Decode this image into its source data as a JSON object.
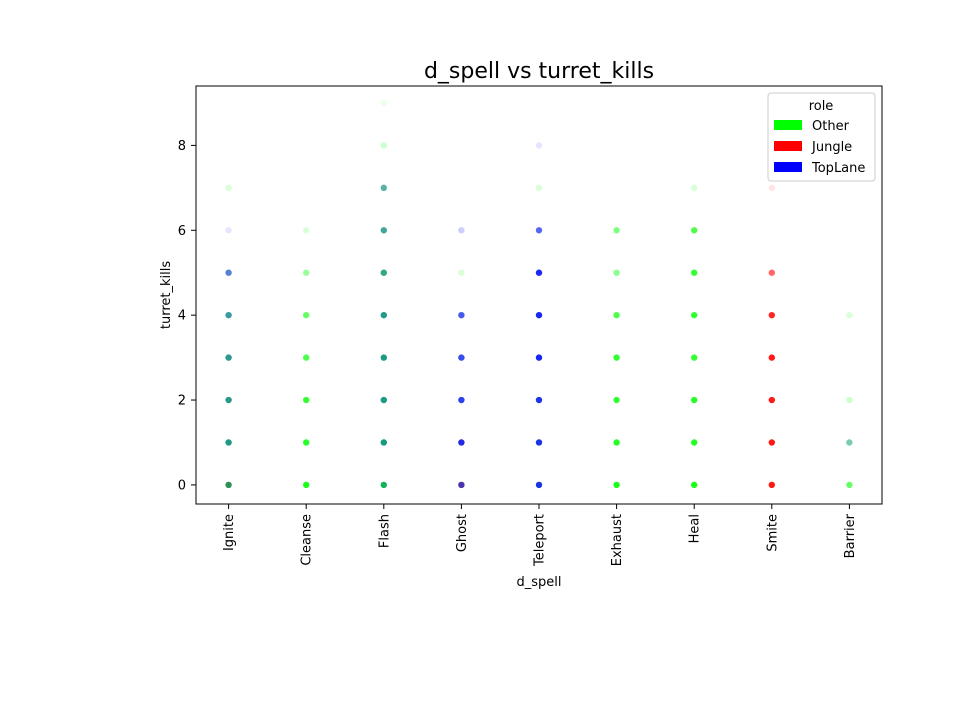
{
  "chart_data": {
    "type": "scatter",
    "title": "d_spell vs turret_kills",
    "xlabel": "d_spell",
    "ylabel": "turret_kills",
    "categories": [
      "Ignite",
      "Cleanse",
      "Flash",
      "Ghost",
      "Teleport",
      "Exhaust",
      "Heal",
      "Smite",
      "Barrier"
    ],
    "ylim": [
      -0.45,
      9.4
    ],
    "yticks": [
      0,
      2,
      4,
      6,
      8
    ],
    "grid": false,
    "legend": {
      "title": "role",
      "placement": "top-right",
      "entries": [
        {
          "label": "Other",
          "color": "#00ff00"
        },
        {
          "label": "Jungle",
          "color": "#ff0000"
        },
        {
          "label": "TopLane",
          "color": "#0000ff"
        }
      ]
    },
    "series": [
      {
        "name": "Other",
        "color": "#00ff00",
        "points": [
          {
            "x": "Ignite",
            "y": 0,
            "opacity": 0.9
          },
          {
            "x": "Ignite",
            "y": 1,
            "opacity": 0.8
          },
          {
            "x": "Ignite",
            "y": 2,
            "opacity": 0.75
          },
          {
            "x": "Ignite",
            "y": 3,
            "opacity": 0.7
          },
          {
            "x": "Ignite",
            "y": 4,
            "opacity": 0.6
          },
          {
            "x": "Ignite",
            "y": 5,
            "opacity": 0.3
          },
          {
            "x": "Ignite",
            "y": 7,
            "opacity": 0.15
          },
          {
            "x": "Cleanse",
            "y": 0,
            "opacity": 0.9
          },
          {
            "x": "Cleanse",
            "y": 1,
            "opacity": 0.85
          },
          {
            "x": "Cleanse",
            "y": 2,
            "opacity": 0.8
          },
          {
            "x": "Cleanse",
            "y": 3,
            "opacity": 0.7
          },
          {
            "x": "Cleanse",
            "y": 4,
            "opacity": 0.6
          },
          {
            "x": "Cleanse",
            "y": 5,
            "opacity": 0.4
          },
          {
            "x": "Cleanse",
            "y": 6,
            "opacity": 0.15
          },
          {
            "x": "Flash",
            "y": 0,
            "opacity": 0.9
          },
          {
            "x": "Flash",
            "y": 1,
            "opacity": 0.85
          },
          {
            "x": "Flash",
            "y": 2,
            "opacity": 0.8
          },
          {
            "x": "Flash",
            "y": 3,
            "opacity": 0.8
          },
          {
            "x": "Flash",
            "y": 4,
            "opacity": 0.75
          },
          {
            "x": "Flash",
            "y": 5,
            "opacity": 0.7
          },
          {
            "x": "Flash",
            "y": 6,
            "opacity": 0.6
          },
          {
            "x": "Flash",
            "y": 7,
            "opacity": 0.5
          },
          {
            "x": "Flash",
            "y": 8,
            "opacity": 0.2
          },
          {
            "x": "Flash",
            "y": 9,
            "opacity": 0.08
          },
          {
            "x": "Ghost",
            "y": 0,
            "opacity": 0.5
          },
          {
            "x": "Ghost",
            "y": 1,
            "opacity": 0.4
          },
          {
            "x": "Ghost",
            "y": 2,
            "opacity": 0.3
          },
          {
            "x": "Ghost",
            "y": 3,
            "opacity": 0.25
          },
          {
            "x": "Ghost",
            "y": 4,
            "opacity": 0.2
          },
          {
            "x": "Ghost",
            "y": 5,
            "opacity": 0.15
          },
          {
            "x": "Teleport",
            "y": 0,
            "opacity": 0.5
          },
          {
            "x": "Teleport",
            "y": 1,
            "opacity": 0.45
          },
          {
            "x": "Teleport",
            "y": 2,
            "opacity": 0.4
          },
          {
            "x": "Teleport",
            "y": 3,
            "opacity": 0.35
          },
          {
            "x": "Teleport",
            "y": 4,
            "opacity": 0.3
          },
          {
            "x": "Teleport",
            "y": 5,
            "opacity": 0.2
          },
          {
            "x": "Teleport",
            "y": 6,
            "opacity": 0.15
          },
          {
            "x": "Teleport",
            "y": 7,
            "opacity": 0.15
          },
          {
            "x": "Exhaust",
            "y": 0,
            "opacity": 0.9
          },
          {
            "x": "Exhaust",
            "y": 1,
            "opacity": 0.85
          },
          {
            "x": "Exhaust",
            "y": 2,
            "opacity": 0.8
          },
          {
            "x": "Exhaust",
            "y": 3,
            "opacity": 0.8
          },
          {
            "x": "Exhaust",
            "y": 4,
            "opacity": 0.7
          },
          {
            "x": "Exhaust",
            "y": 5,
            "opacity": 0.45
          },
          {
            "x": "Exhaust",
            "y": 6,
            "opacity": 0.5
          },
          {
            "x": "Heal",
            "y": 0,
            "opacity": 0.9
          },
          {
            "x": "Heal",
            "y": 1,
            "opacity": 0.85
          },
          {
            "x": "Heal",
            "y": 2,
            "opacity": 0.85
          },
          {
            "x": "Heal",
            "y": 3,
            "opacity": 0.8
          },
          {
            "x": "Heal",
            "y": 4,
            "opacity": 0.8
          },
          {
            "x": "Heal",
            "y": 5,
            "opacity": 0.8
          },
          {
            "x": "Heal",
            "y": 6,
            "opacity": 0.7
          },
          {
            "x": "Heal",
            "y": 7,
            "opacity": 0.15
          },
          {
            "x": "Smite",
            "y": 0,
            "opacity": 0.15
          },
          {
            "x": "Smite",
            "y": 1,
            "opacity": 0.1
          },
          {
            "x": "Barrier",
            "y": 0,
            "opacity": 0.6
          },
          {
            "x": "Barrier",
            "y": 1,
            "opacity": 0.4
          },
          {
            "x": "Barrier",
            "y": 2,
            "opacity": 0.2
          },
          {
            "x": "Barrier",
            "y": 4,
            "opacity": 0.15
          }
        ]
      },
      {
        "name": "Jungle",
        "color": "#ff0000",
        "points": [
          {
            "x": "Ignite",
            "y": 0,
            "opacity": 0.2
          },
          {
            "x": "Ghost",
            "y": 0,
            "opacity": 0.5
          },
          {
            "x": "Ghost",
            "y": 1,
            "opacity": 0.2
          },
          {
            "x": "Smite",
            "y": 0,
            "opacity": 0.9
          },
          {
            "x": "Smite",
            "y": 1,
            "opacity": 0.9
          },
          {
            "x": "Smite",
            "y": 2,
            "opacity": 0.9
          },
          {
            "x": "Smite",
            "y": 3,
            "opacity": 0.9
          },
          {
            "x": "Smite",
            "y": 4,
            "opacity": 0.85
          },
          {
            "x": "Smite",
            "y": 5,
            "opacity": 0.6
          },
          {
            "x": "Smite",
            "y": 7,
            "opacity": 0.1
          }
        ]
      },
      {
        "name": "TopLane",
        "color": "#0000ff",
        "points": [
          {
            "x": "Ignite",
            "y": 0,
            "opacity": 0.3
          },
          {
            "x": "Ignite",
            "y": 1,
            "opacity": 0.4
          },
          {
            "x": "Ignite",
            "y": 2,
            "opacity": 0.4
          },
          {
            "x": "Ignite",
            "y": 3,
            "opacity": 0.4
          },
          {
            "x": "Ignite",
            "y": 4,
            "opacity": 0.4
          },
          {
            "x": "Ignite",
            "y": 5,
            "opacity": 0.5
          },
          {
            "x": "Ignite",
            "y": 6,
            "opacity": 0.1
          },
          {
            "x": "Flash",
            "y": 0,
            "opacity": 0.3
          },
          {
            "x": "Flash",
            "y": 1,
            "opacity": 0.4
          },
          {
            "x": "Flash",
            "y": 2,
            "opacity": 0.4
          },
          {
            "x": "Flash",
            "y": 3,
            "opacity": 0.4
          },
          {
            "x": "Flash",
            "y": 4,
            "opacity": 0.4
          },
          {
            "x": "Flash",
            "y": 5,
            "opacity": 0.35
          },
          {
            "x": "Flash",
            "y": 6,
            "opacity": 0.35
          },
          {
            "x": "Flash",
            "y": 7,
            "opacity": 0.3
          },
          {
            "x": "Ghost",
            "y": 0,
            "opacity": 0.6
          },
          {
            "x": "Ghost",
            "y": 1,
            "opacity": 0.8
          },
          {
            "x": "Ghost",
            "y": 2,
            "opacity": 0.75
          },
          {
            "x": "Ghost",
            "y": 3,
            "opacity": 0.7
          },
          {
            "x": "Ghost",
            "y": 4,
            "opacity": 0.65
          },
          {
            "x": "Ghost",
            "y": 6,
            "opacity": 0.2
          },
          {
            "x": "Teleport",
            "y": 0,
            "opacity": 0.8
          },
          {
            "x": "Teleport",
            "y": 1,
            "opacity": 0.8
          },
          {
            "x": "Teleport",
            "y": 2,
            "opacity": 0.8
          },
          {
            "x": "Teleport",
            "y": 3,
            "opacity": 0.85
          },
          {
            "x": "Teleport",
            "y": 4,
            "opacity": 0.85
          },
          {
            "x": "Teleport",
            "y": 5,
            "opacity": 0.85
          },
          {
            "x": "Teleport",
            "y": 6,
            "opacity": 0.6
          },
          {
            "x": "Teleport",
            "y": 8,
            "opacity": 0.1
          },
          {
            "x": "Barrier",
            "y": 1,
            "opacity": 0.2
          }
        ]
      }
    ]
  }
}
